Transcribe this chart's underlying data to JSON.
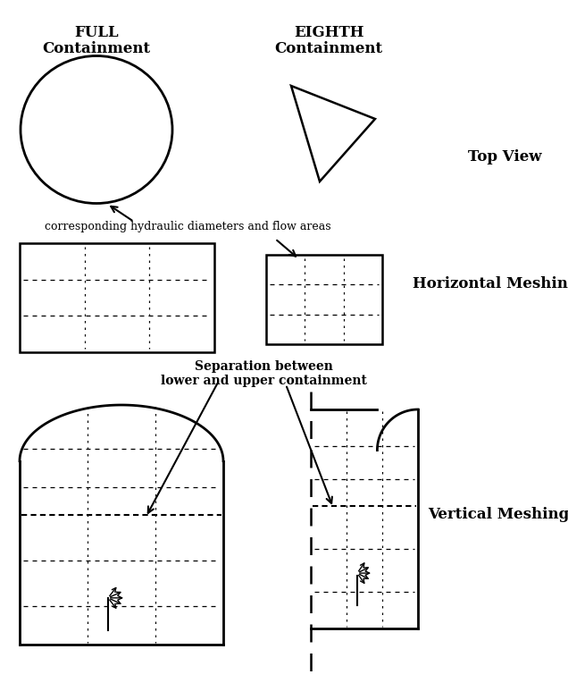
{
  "bg_color": "#ffffff",
  "line_color": "#000000",
  "fig_width": 6.36,
  "fig_height": 7.64,
  "label_full_1": "FULL",
  "label_full_2": "Containment",
  "label_eighth_1": "EIGHTH",
  "label_eighth_2": "Containment",
  "label_top_view": "Top View",
  "label_horiz_mesh": "Horizontal Meshing",
  "label_vert_mesh": "Vertical Meshing",
  "label_hydraulic": "corresponding hydraulic diameters and flow areas",
  "label_separation": "Separation between\nlower and upper containment"
}
